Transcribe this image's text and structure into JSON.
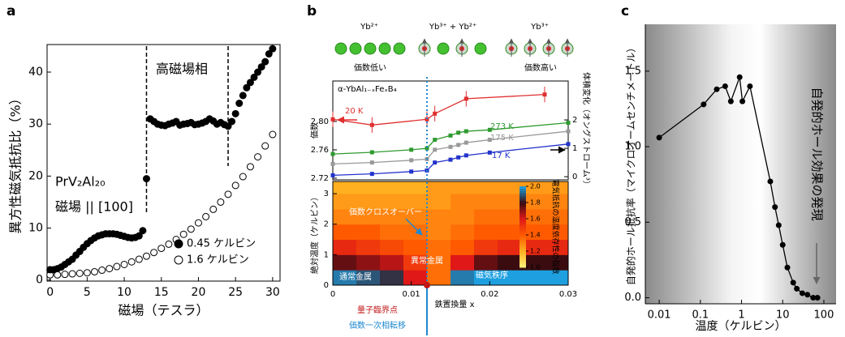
{
  "chart_data": [
    {
      "type": "scatter",
      "panel_label": "a",
      "xlabel": "磁場（テスラ）",
      "ylabel": "異方性磁気抵抗比（%）",
      "xlim": [
        -0.4,
        31
      ],
      "ylim": [
        -0.2,
        45.3
      ],
      "xticks": [
        0,
        5,
        10,
        15,
        20,
        25,
        30
      ],
      "yticks": [
        0,
        10,
        20,
        30,
        40
      ],
      "phase_boundaries": [
        13,
        24
      ],
      "annotations": [
        "高磁場相",
        "PrV₂Al₂₀",
        "磁場 || [100]"
      ],
      "legend": "lower right",
      "series": [
        {
          "name": "0.45 ケルビン",
          "color": "#000000",
          "marker": "filled",
          "x": [
            0,
            0.5,
            1,
            1.5,
            2,
            2.5,
            3,
            3.5,
            4,
            4.5,
            5,
            5.5,
            6,
            6.5,
            7,
            7.5,
            8,
            8.5,
            9,
            9.5,
            10,
            10.5,
            11,
            11.5,
            12,
            12.5,
            13,
            13.5,
            14,
            14.5,
            15,
            15.5,
            16,
            16.5,
            17,
            17.5,
            18,
            18.5,
            19,
            19.5,
            20,
            20.5,
            21,
            21.5,
            22,
            22.5,
            23,
            23.5,
            24,
            24.5,
            25,
            25.5,
            26,
            26.5,
            27,
            27.5,
            28,
            28.5,
            29,
            29.5,
            30
          ],
          "values": [
            2,
            2,
            2.2,
            2.5,
            3,
            3.5,
            4,
            4.8,
            5.5,
            6.3,
            7,
            7.6,
            8.1,
            8.5,
            8.7,
            8.9,
            8.9,
            8.9,
            8.8,
            8.6,
            8.4,
            8.2,
            8.1,
            8.2,
            8.5,
            9.5,
            19.5,
            31,
            30.5,
            30,
            29.8,
            29.7,
            30,
            30.2,
            30.5,
            29.8,
            30,
            30.1,
            30.3,
            29.9,
            30,
            30.2,
            30.5,
            31,
            30.6,
            30,
            30.3,
            29.9,
            29.6,
            30.5,
            32,
            34,
            35.5,
            37,
            38,
            39,
            40,
            41,
            42,
            43.5,
            44.5
          ]
        },
        {
          "name": "1.6 ケルビン",
          "color": "#000000",
          "marker": "open",
          "x": [
            0,
            1,
            2,
            3,
            4,
            5,
            6,
            7,
            8,
            9,
            10,
            11,
            12,
            13,
            14,
            15,
            16,
            17,
            18,
            19,
            20,
            21,
            22,
            23,
            24,
            25,
            26,
            27,
            28,
            29,
            30
          ],
          "values": [
            1.0,
            1.0,
            1.1,
            1.2,
            1.3,
            1.4,
            1.6,
            1.9,
            2.2,
            2.6,
            3.0,
            3.5,
            4.0,
            4.6,
            5.3,
            6.1,
            6.9,
            7.8,
            8.8,
            9.8,
            11.0,
            12.2,
            13.6,
            15.0,
            16.5,
            18.2,
            19.9,
            21.8,
            23.7,
            25.8,
            28.0
          ]
        }
      ]
    },
    {
      "type": "line",
      "panel_label": "b",
      "icons": [
        {
          "label": "Yb²⁺",
          "caption": "価数低い"
        },
        {
          "label": "Yb³⁺ + Yb²⁺"
        },
        {
          "label": "Yb³⁺",
          "caption": "価数高い"
        }
      ],
      "label": "α-YbAl₁₋ₓFeₓB₄",
      "ylabel": "価数",
      "y2label": "体積変化（オングストローム³）",
      "xlim": [
        0,
        0.03
      ],
      "ylim": [
        2.7177,
        2.857
      ],
      "yticks": [
        2.72,
        2.76,
        {
          "value": 2.8,
          "label": "2.80"
        }
      ],
      "y2lim": [
        -0.11,
        3.37
      ],
      "y2ticks": [
        0,
        1,
        2
      ],
      "series": [
        {
          "name": "20 K",
          "color": "#e03030",
          "x": [
            0,
            0.005,
            0.012,
            0.013,
            0.017,
            0.027
          ],
          "values": [
            2.803,
            2.795,
            2.803,
            2.811,
            2.832,
            2.838
          ],
          "errors": [
            0.011,
            0.011,
            0.011,
            0.011,
            0.011,
            0.011
          ]
        },
        {
          "name": "273 K",
          "color": "#2e9a2e",
          "axis": "y2",
          "x": [
            0,
            0.005,
            0.01,
            0.012,
            0.013,
            0.015,
            0.016,
            0.017,
            0.02,
            0.03
          ],
          "values": [
            0.8,
            0.86,
            0.95,
            1.0,
            1.3,
            1.45,
            1.55,
            1.6,
            1.65,
            1.9
          ]
        },
        {
          "name": "175 K",
          "color": "#999999",
          "axis": "y2",
          "x": [
            0,
            0.005,
            0.01,
            0.012,
            0.013,
            0.015,
            0.016,
            0.017,
            0.02,
            0.03
          ],
          "values": [
            0.45,
            0.5,
            0.58,
            0.62,
            0.95,
            1.05,
            1.12,
            1.2,
            1.3,
            1.6
          ]
        },
        {
          "name": "17 K",
          "color": "#2233cc",
          "axis": "y2",
          "x": [
            0,
            0.005,
            0.01,
            0.012,
            0.013,
            0.015,
            0.016,
            0.017,
            0.02,
            0.03
          ],
          "values": [
            0.05,
            0.1,
            0.18,
            0.22,
            0.5,
            0.6,
            0.68,
            0.75,
            0.85,
            1.15
          ]
        }
      ]
    },
    {
      "type": "heatmap",
      "xlabel": "鉄置換量 x",
      "ylabel": "絶対温度（ケルビン）",
      "xlim": [
        0,
        0.03
      ],
      "ylim": [
        0,
        3.4
      ],
      "xticks": [
        0,
        0.01,
        0.02,
        0.03
      ],
      "yticks": [
        0,
        1,
        2,
        3
      ],
      "x_edges": [
        0,
        0.003,
        0.006,
        0.009,
        0.012,
        0.015,
        0.018,
        0.021,
        0.024,
        0.027,
        0.03
      ],
      "y_edges": [
        0,
        0.5,
        1,
        1.5,
        2,
        2.5,
        3,
        3.4
      ],
      "z": [
        [
          1.95,
          1.9,
          1.85,
          1.6,
          1.35,
          1.95,
          2.0,
          2.0,
          2.0,
          2.0
        ],
        [
          1.75,
          1.7,
          1.65,
          1.5,
          1.35,
          1.6,
          1.75,
          1.8,
          1.8,
          1.8
        ],
        [
          1.55,
          1.5,
          1.45,
          1.4,
          1.35,
          1.4,
          1.5,
          1.55,
          1.55,
          1.55
        ],
        [
          1.4,
          1.4,
          1.35,
          1.35,
          1.3,
          1.35,
          1.4,
          1.4,
          1.4,
          1.4
        ],
        [
          1.3,
          1.3,
          1.3,
          1.3,
          1.3,
          1.3,
          1.35,
          1.35,
          1.35,
          1.35
        ],
        [
          1.25,
          1.25,
          1.25,
          1.25,
          1.25,
          1.3,
          1.3,
          1.3,
          1.3,
          1.3
        ],
        [
          1.2,
          1.2,
          1.2,
          1.2,
          1.25,
          1.25,
          1.25,
          1.25,
          1.25,
          1.25
        ]
      ],
      "zlim": [
        1,
        2
      ],
      "zticks": [
        {
          "value": 1,
          "label": "1.0"
        },
        1.2,
        1.4,
        1.6,
        1.8,
        {
          "value": 2,
          "label": "2.0"
        }
      ],
      "colormap": [
        "#fff27a",
        "#ffb020",
        "#ff5a00",
        "#e01818",
        "#3a0c10",
        "#1ea0e0"
      ],
      "colorbar_label": "電気抵抗の温度依存性の指数",
      "qcp_x": 0.012,
      "annotations": [
        "価数クロスオーバー",
        "異常金属",
        "通常金属",
        "磁気秩序",
        "量子臨界点",
        "価数一次相転移"
      ]
    },
    {
      "type": "line",
      "panel_label": "c",
      "xscale": "log",
      "xlabel": "温度（ケルビン）",
      "ylabel": "自発的ホール抵抗率（マイクロオームセンチメートル）",
      "annotation": "自発的ホール効果の発現",
      "xlim": [
        0.0046,
        198
      ],
      "ylim": [
        -0.04,
        1.81
      ],
      "xticks": [
        0.01,
        0.1,
        1,
        10,
        100
      ],
      "yticks": [
        {
          "value": 0,
          "label": "0.0"
        },
        0.5,
        {
          "value": 1,
          "label": "1.0"
        },
        1.5
      ],
      "series": [
        {
          "color": "#000000",
          "x": [
            0.01,
            0.12,
            0.25,
            0.4,
            0.55,
            0.9,
            1.05,
            1.6,
            5,
            6.5,
            8,
            10,
            13,
            18,
            22,
            30,
            40,
            55,
            70
          ],
          "values": [
            1.06,
            1.28,
            1.38,
            1.4,
            1.3,
            1.46,
            1.3,
            1.4,
            0.77,
            0.6,
            0.48,
            0.35,
            0.2,
            0.1,
            0.06,
            0.03,
            0.02,
            0.0,
            0.0
          ]
        }
      ]
    }
  ]
}
